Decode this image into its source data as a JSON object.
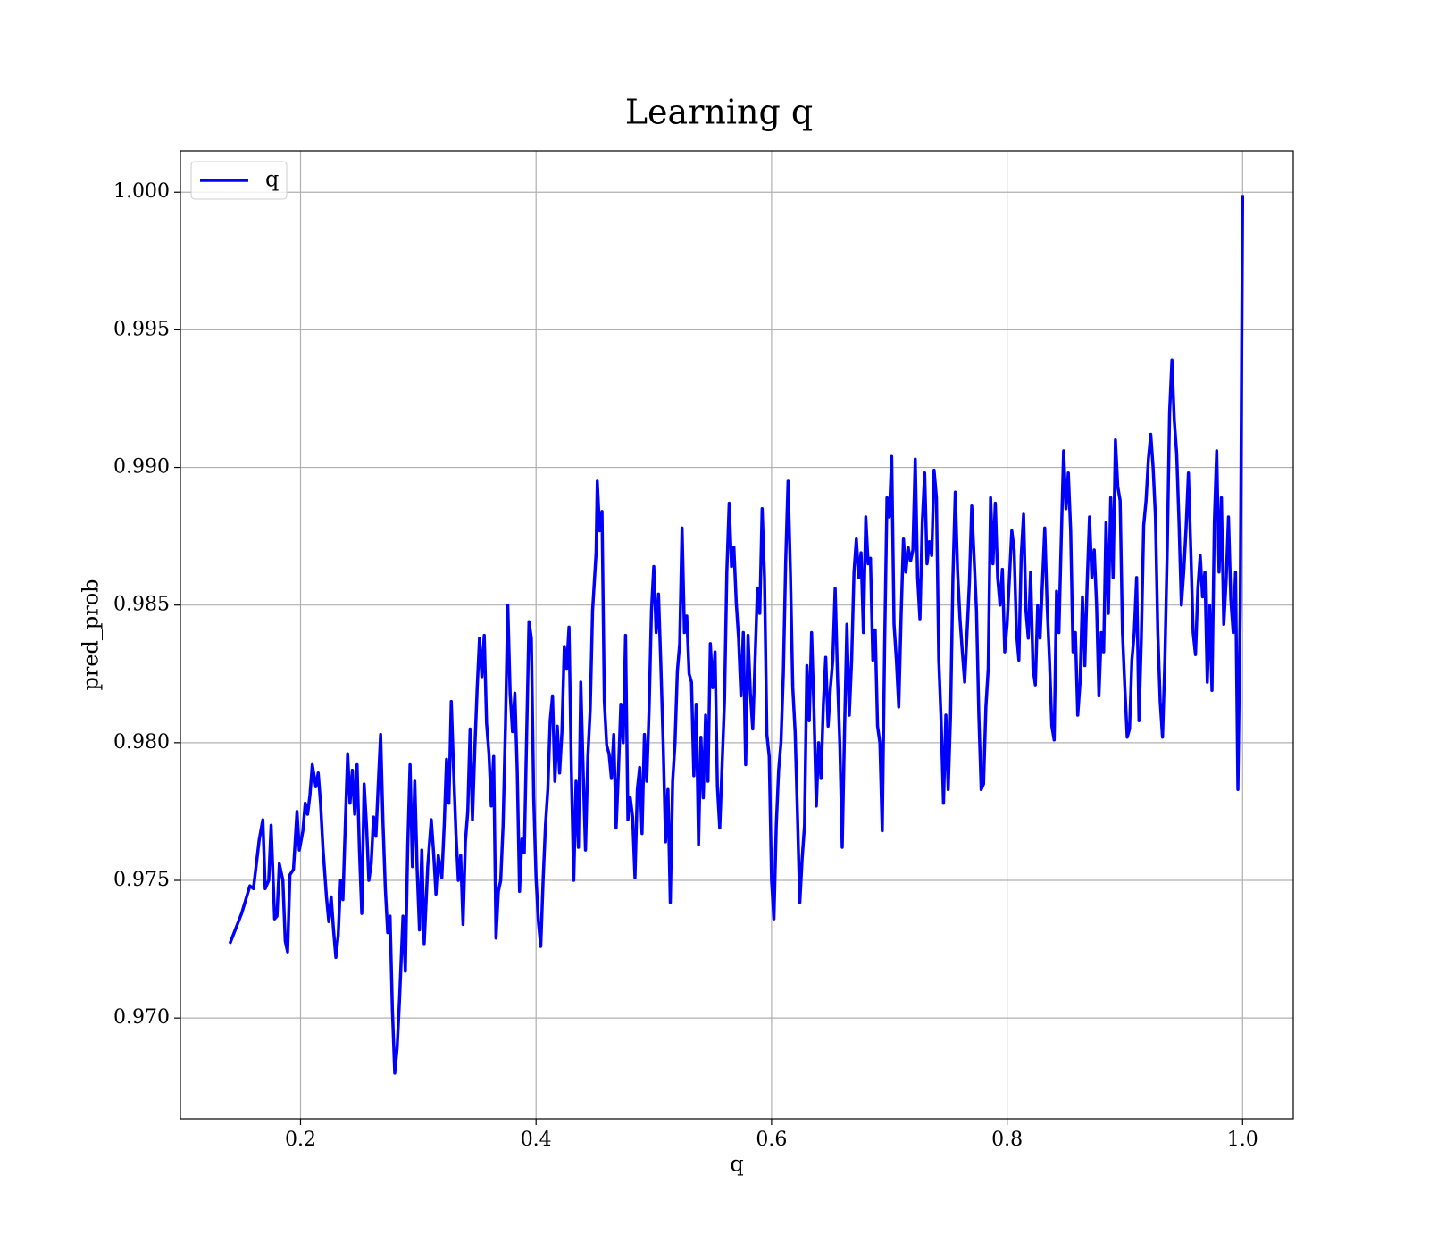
{
  "chart_data": {
    "type": "line",
    "title": "Learning q",
    "x_label": "q",
    "y_label": "pred_prob",
    "xlim": [
      0.098,
      1.043
    ],
    "ylim": [
      0.96634,
      1.0015
    ],
    "xticks": [
      0.2,
      0.4,
      0.6,
      0.8,
      {
        "value": 1.0,
        "label": "1.0"
      }
    ],
    "yticks": [
      {
        "value": 0.97,
        "label": "0.970"
      },
      0.975,
      {
        "value": 0.98,
        "label": "0.980"
      },
      0.985,
      {
        "value": 0.99,
        "label": "0.990"
      },
      0.995,
      {
        "value": 1.0,
        "label": "1.000"
      }
    ],
    "grid": true,
    "legend": "upper left",
    "x": [
      0.14,
      0.15,
      0.157,
      0.16,
      0.165,
      0.168,
      0.17,
      0.173,
      0.175,
      0.178,
      0.18,
      0.182,
      0.185,
      0.187,
      0.189,
      0.191,
      0.194,
      0.197,
      0.199,
      0.202,
      0.204,
      0.206,
      0.208,
      0.21,
      0.213,
      0.215,
      0.217,
      0.219,
      0.222,
      0.224,
      0.226,
      0.228,
      0.23,
      0.232,
      0.234,
      0.236,
      0.238,
      0.24,
      0.242,
      0.244,
      0.246,
      0.248,
      0.25,
      0.252,
      0.254,
      0.256,
      0.258,
      0.26,
      0.262,
      0.264,
      0.266,
      0.268,
      0.27,
      0.272,
      0.274,
      0.276,
      0.278,
      0.28,
      0.282,
      0.284,
      0.287,
      0.289,
      0.291,
      0.293,
      0.295,
      0.297,
      0.299,
      0.301,
      0.303,
      0.305,
      0.308,
      0.311,
      0.313,
      0.315,
      0.317,
      0.32,
      0.322,
      0.324,
      0.326,
      0.328,
      0.33,
      0.332,
      0.334,
      0.336,
      0.338,
      0.34,
      0.342,
      0.344,
      0.346,
      0.348,
      0.35,
      0.352,
      0.354,
      0.356,
      0.358,
      0.36,
      0.362,
      0.364,
      0.366,
      0.368,
      0.37,
      0.372,
      0.374,
      0.376,
      0.378,
      0.38,
      0.382,
      0.384,
      0.386,
      0.388,
      0.39,
      0.392,
      0.394,
      0.396,
      0.398,
      0.4,
      0.402,
      0.404,
      0.406,
      0.408,
      0.41,
      0.412,
      0.414,
      0.416,
      0.418,
      0.42,
      0.422,
      0.424,
      0.426,
      0.428,
      0.43,
      0.432,
      0.434,
      0.436,
      0.438,
      0.44,
      0.442,
      0.444,
      0.446,
      0.448,
      0.451,
      0.452,
      0.454,
      0.456,
      0.458,
      0.46,
      0.462,
      0.464,
      0.466,
      0.468,
      0.47,
      0.472,
      0.474,
      0.476,
      0.478,
      0.48,
      0.482,
      0.484,
      0.486,
      0.488,
      0.49,
      0.492,
      0.494,
      0.496,
      0.498,
      0.5,
      0.502,
      0.504,
      0.506,
      0.508,
      0.51,
      0.512,
      0.514,
      0.516,
      0.518,
      0.52,
      0.522,
      0.524,
      0.526,
      0.528,
      0.53,
      0.532,
      0.534,
      0.536,
      0.538,
      0.54,
      0.542,
      0.544,
      0.546,
      0.548,
      0.55,
      0.552,
      0.554,
      0.556,
      0.558,
      0.56,
      0.562,
      0.564,
      0.566,
      0.568,
      0.57,
      0.572,
      0.574,
      0.576,
      0.578,
      0.58,
      0.582,
      0.584,
      0.586,
      0.588,
      0.59,
      0.592,
      0.594,
      0.596,
      0.598,
      0.6,
      0.602,
      0.604,
      0.606,
      0.608,
      0.61,
      0.612,
      0.614,
      0.616,
      0.618,
      0.62,
      0.622,
      0.624,
      0.626,
      0.628,
      0.63,
      0.632,
      0.634,
      0.636,
      0.638,
      0.64,
      0.642,
      0.644,
      0.646,
      0.648,
      0.65,
      0.652,
      0.654,
      0.656,
      0.658,
      0.66,
      0.662,
      0.664,
      0.666,
      0.668,
      0.67,
      0.672,
      0.674,
      0.676,
      0.678,
      0.68,
      0.682,
      0.684,
      0.686,
      0.688,
      0.69,
      0.692,
      0.694,
      0.696,
      0.698,
      0.7,
      0.702,
      0.704,
      0.706,
      0.708,
      0.71,
      0.712,
      0.714,
      0.716,
      0.718,
      0.72,
      0.722,
      0.724,
      0.726,
      0.728,
      0.73,
      0.732,
      0.734,
      0.736,
      0.738,
      0.74,
      0.742,
      0.744,
      0.746,
      0.748,
      0.75,
      0.752,
      0.754,
      0.756,
      0.758,
      0.76,
      0.762,
      0.764,
      0.766,
      0.768,
      0.77,
      0.772,
      0.774,
      0.776,
      0.778,
      0.78,
      0.782,
      0.784,
      0.786,
      0.788,
      0.79,
      0.792,
      0.794,
      0.796,
      0.798,
      0.8,
      0.802,
      0.804,
      0.806,
      0.808,
      0.81,
      0.812,
      0.814,
      0.816,
      0.818,
      0.82,
      0.822,
      0.824,
      0.826,
      0.828,
      0.83,
      0.832,
      0.834,
      0.836,
      0.838,
      0.84,
      0.842,
      0.844,
      0.846,
      0.848,
      0.85,
      0.852,
      0.854,
      0.856,
      0.858,
      0.86,
      0.862,
      0.864,
      0.866,
      0.868,
      0.87,
      0.872,
      0.874,
      0.876,
      0.878,
      0.88,
      0.882,
      0.884,
      0.886,
      0.888,
      0.89,
      0.892,
      0.894,
      0.896,
      0.898,
      0.9,
      0.902,
      0.904,
      0.906,
      0.908,
      0.91,
      0.912,
      0.914,
      0.916,
      0.918,
      0.92,
      0.922,
      0.924,
      0.926,
      0.928,
      0.93,
      0.932,
      0.934,
      0.936,
      0.938,
      0.94,
      0.942,
      0.944,
      0.946,
      0.948,
      0.95,
      0.952,
      0.954,
      0.956,
      0.958,
      0.96,
      0.962,
      0.964,
      0.966,
      0.968,
      0.97,
      0.972,
      0.974,
      0.976,
      0.978,
      0.98,
      0.982,
      0.984,
      0.986,
      0.988,
      0.99,
      0.992,
      0.994,
      0.996,
      0.998,
      1.0
    ],
    "series": [
      {
        "name": "q",
        "color": "#0000ff",
        "values": [
          0.9727,
          0.9738,
          0.9748,
          0.9747,
          0.9765,
          0.9772,
          0.9747,
          0.975,
          0.977,
          0.9736,
          0.9737,
          0.9756,
          0.975,
          0.9728,
          0.9724,
          0.9752,
          0.9754,
          0.9775,
          0.9761,
          0.9768,
          0.9778,
          0.9774,
          0.9781,
          0.9792,
          0.9784,
          0.9789,
          0.9778,
          0.9762,
          0.9744,
          0.9735,
          0.9744,
          0.9732,
          0.9722,
          0.973,
          0.975,
          0.9743,
          0.977,
          0.9796,
          0.9778,
          0.979,
          0.9774,
          0.9792,
          0.9761,
          0.9738,
          0.9785,
          0.977,
          0.975,
          0.9756,
          0.9773,
          0.9766,
          0.9785,
          0.9803,
          0.9771,
          0.9747,
          0.9731,
          0.9737,
          0.9703,
          0.968,
          0.9689,
          0.9706,
          0.9737,
          0.9717,
          0.9762,
          0.9792,
          0.9755,
          0.9786,
          0.9754,
          0.9732,
          0.9761,
          0.9727,
          0.9755,
          0.9772,
          0.976,
          0.9745,
          0.9759,
          0.9751,
          0.977,
          0.9794,
          0.9778,
          0.9815,
          0.979,
          0.9767,
          0.975,
          0.9759,
          0.9734,
          0.9764,
          0.9775,
          0.9805,
          0.9772,
          0.9798,
          0.982,
          0.9838,
          0.9824,
          0.9839,
          0.9807,
          0.9796,
          0.9777,
          0.9795,
          0.9729,
          0.9746,
          0.975,
          0.977,
          0.9806,
          0.985,
          0.9818,
          0.9804,
          0.9818,
          0.979,
          0.9746,
          0.9765,
          0.976,
          0.9802,
          0.9844,
          0.9838,
          0.978,
          0.9751,
          0.9735,
          0.9726,
          0.975,
          0.977,
          0.9783,
          0.9808,
          0.9817,
          0.9786,
          0.9806,
          0.9789,
          0.9804,
          0.9835,
          0.9827,
          0.9842,
          0.979,
          0.975,
          0.9786,
          0.9762,
          0.9822,
          0.979,
          0.9761,
          0.9795,
          0.9812,
          0.9848,
          0.9869,
          0.9895,
          0.9877,
          0.9884,
          0.9815,
          0.9799,
          0.9796,
          0.9787,
          0.9803,
          0.9769,
          0.979,
          0.9814,
          0.98,
          0.9839,
          0.9772,
          0.978,
          0.9773,
          0.9751,
          0.9783,
          0.9791,
          0.9767,
          0.9803,
          0.9786,
          0.9812,
          0.9848,
          0.9864,
          0.984,
          0.9854,
          0.9828,
          0.9799,
          0.9764,
          0.9783,
          0.9742,
          0.9786,
          0.98,
          0.9826,
          0.9836,
          0.9878,
          0.984,
          0.9846,
          0.9825,
          0.9822,
          0.9788,
          0.9814,
          0.9763,
          0.9802,
          0.978,
          0.981,
          0.9786,
          0.9836,
          0.982,
          0.9833,
          0.9784,
          0.9769,
          0.9792,
          0.9815,
          0.9862,
          0.9887,
          0.9864,
          0.9871,
          0.9851,
          0.9838,
          0.9817,
          0.984,
          0.9792,
          0.9839,
          0.9818,
          0.9805,
          0.983,
          0.9856,
          0.9847,
          0.9885,
          0.986,
          0.9803,
          0.9795,
          0.975,
          0.9736,
          0.977,
          0.979,
          0.98,
          0.9825,
          0.9866,
          0.9895,
          0.9862,
          0.982,
          0.9804,
          0.9774,
          0.9742,
          0.9758,
          0.977,
          0.9828,
          0.9808,
          0.984,
          0.9812,
          0.9777,
          0.98,
          0.9787,
          0.9814,
          0.9831,
          0.9806,
          0.982,
          0.983,
          0.9856,
          0.9824,
          0.9799,
          0.9762,
          0.9805,
          0.9843,
          0.981,
          0.983,
          0.9862,
          0.9874,
          0.986,
          0.9869,
          0.984,
          0.9882,
          0.9865,
          0.9867,
          0.983,
          0.9841,
          0.9806,
          0.98,
          0.9768,
          0.9835,
          0.9889,
          0.9882,
          0.9904,
          0.9843,
          0.983,
          0.9813,
          0.9846,
          0.9874,
          0.9862,
          0.9871,
          0.9866,
          0.987,
          0.9903,
          0.986,
          0.9845,
          0.988,
          0.9898,
          0.9865,
          0.9873,
          0.9868,
          0.9899,
          0.9889,
          0.983,
          0.9808,
          0.9778,
          0.981,
          0.9783,
          0.981,
          0.986,
          0.9891,
          0.9862,
          0.9845,
          0.9833,
          0.9822,
          0.984,
          0.9858,
          0.9886,
          0.9867,
          0.9848,
          0.981,
          0.9783,
          0.9785,
          0.9813,
          0.9827,
          0.9889,
          0.9865,
          0.9887,
          0.986,
          0.985,
          0.9863,
          0.9833,
          0.9843,
          0.986,
          0.9877,
          0.987,
          0.984,
          0.983,
          0.9868,
          0.9883,
          0.9848,
          0.9838,
          0.9862,
          0.9827,
          0.9821,
          0.985,
          0.9838,
          0.9858,
          0.9878,
          0.985,
          0.983,
          0.9806,
          0.9801,
          0.9855,
          0.984,
          0.9874,
          0.9906,
          0.9885,
          0.9898,
          0.9877,
          0.9833,
          0.984,
          0.981,
          0.9822,
          0.9853,
          0.9828,
          0.9858,
          0.9882,
          0.986,
          0.987,
          0.985,
          0.9817,
          0.984,
          0.9833,
          0.988,
          0.9847,
          0.9889,
          0.986,
          0.991,
          0.9893,
          0.9888,
          0.984,
          0.982,
          0.9802,
          0.9805,
          0.983,
          0.984,
          0.986,
          0.9808,
          0.9838,
          0.9879,
          0.9888,
          0.9903,
          0.9912,
          0.99,
          0.9882,
          0.984,
          0.9815,
          0.9802,
          0.983,
          0.987,
          0.992,
          0.9939,
          0.9917,
          0.9905,
          0.988,
          0.985,
          0.9862,
          0.9878,
          0.9898,
          0.987,
          0.984,
          0.9832,
          0.9856,
          0.9868,
          0.9853,
          0.9862,
          0.9822,
          0.985,
          0.9819,
          0.988,
          0.9906,
          0.9862,
          0.9889,
          0.9843,
          0.9859,
          0.9882,
          0.9852,
          0.984,
          0.9862,
          0.9783,
          0.985,
          0.9999
        ]
      }
    ]
  }
}
